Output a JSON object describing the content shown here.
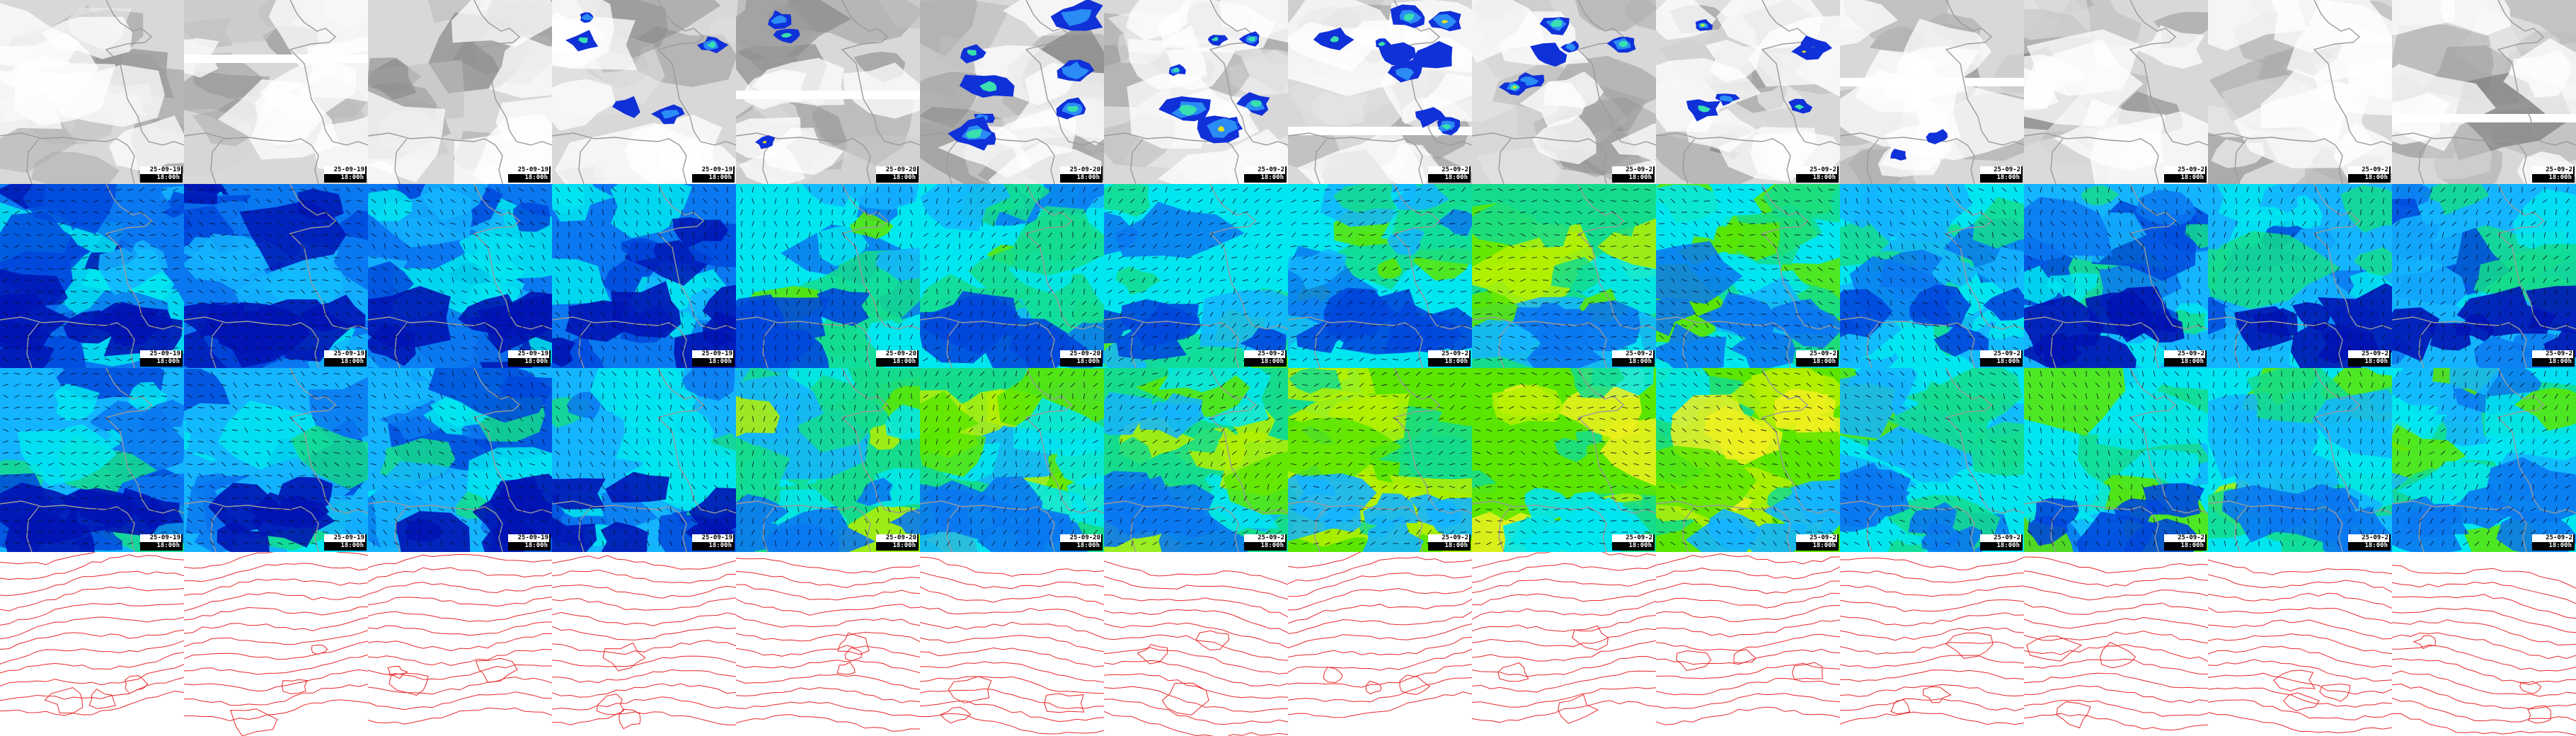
{
  "map": {
    "rows": [
      {
        "key": "cloud",
        "kind": "cloud-precip"
      },
      {
        "key": "wind-low",
        "kind": "wind"
      },
      {
        "key": "wind-high",
        "kind": "wind"
      },
      {
        "key": "pressure",
        "kind": "isobars"
      }
    ],
    "columns": [
      {
        "date": "25-09-19",
        "time": "18:00h"
      },
      {
        "date": "25-09-19",
        "time": "18:00h"
      },
      {
        "date": "25-09-19",
        "time": "18:00h"
      },
      {
        "date": "25-09-19",
        "time": "18:00h"
      },
      {
        "date": "25-09-20",
        "time": "18:00h"
      },
      {
        "date": "25-09-20",
        "time": "18:00h"
      },
      {
        "date": "25-09-2",
        "time": "18:00h"
      },
      {
        "date": "25-09-2",
        "time": "18:00h"
      },
      {
        "date": "25-09-2",
        "time": "18:00h"
      },
      {
        "date": "25-09-2",
        "time": "18:00h"
      },
      {
        "date": "25-09-2",
        "time": "18:00h"
      },
      {
        "date": "25-09-2",
        "time": "18:00h"
      },
      {
        "date": "25-09-2",
        "time": "18:00h"
      },
      {
        "date": "25-09-2",
        "time": "18:00h"
      }
    ],
    "cloud_level": [
      0.35,
      0.35,
      0.45,
      0.5,
      0.55,
      0.55,
      0.3,
      0.25,
      0.35,
      0.3,
      0.3,
      0.35,
      0.3,
      0.35
    ],
    "precip_level": [
      0,
      0,
      0.05,
      0.45,
      0.25,
      0.7,
      0.75,
      0.75,
      0.55,
      0.5,
      0.2,
      0.05,
      0.05,
      0
    ],
    "wind_low_level": [
      0.25,
      0.25,
      0.25,
      0.3,
      0.45,
      0.5,
      0.5,
      0.5,
      0.6,
      0.55,
      0.45,
      0.4,
      0.35,
      0.4
    ],
    "wind_high_level": [
      0.35,
      0.4,
      0.35,
      0.4,
      0.65,
      0.65,
      0.65,
      0.7,
      0.8,
      0.75,
      0.55,
      0.5,
      0.55,
      0.55
    ],
    "colors": {
      "coast": "#9a9a9a",
      "isobar": "#e8262a",
      "cloud_dark": "#a9a9a9",
      "cloud_light": "#ffffff",
      "precip_scale": [
        "#1030d8",
        "#2a8cf4",
        "#38e0b0",
        "#e8e020",
        "#f08018"
      ],
      "wind_scale": [
        "#0014b4",
        "#0048dc",
        "#0a78f0",
        "#14b4ff",
        "#00e6f0",
        "#14dc8c",
        "#5ae600",
        "#b4f000",
        "#f0f01e"
      ]
    }
  }
}
